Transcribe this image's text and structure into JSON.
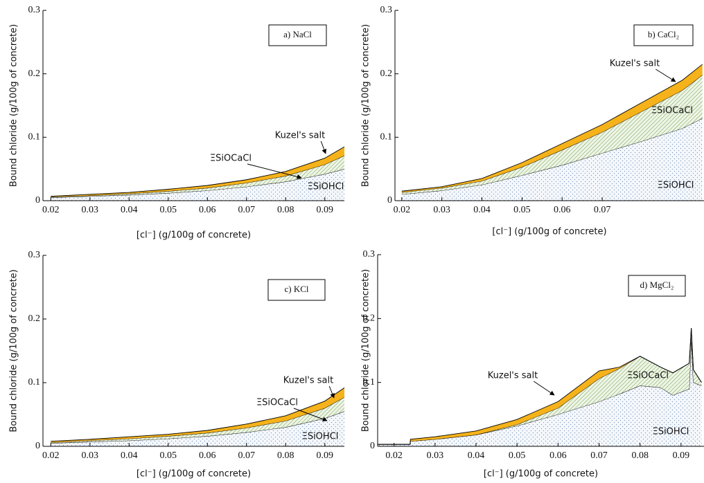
{
  "chart_data": [
    {
      "type": "stacked_area",
      "title": "a) NaCl",
      "xlabel": "[cl⁻] (g/100g of concrete)",
      "ylabel": "Bound chloride (g/100g of concrete)",
      "x": [
        0.02,
        0.03,
        0.04,
        0.05,
        0.06,
        0.07,
        0.08,
        0.09,
        0.095
      ],
      "series": [
        {
          "name": "ΞSiOHCl",
          "color": "#8fa8c8",
          "values": [
            0.005,
            0.007,
            0.009,
            0.012,
            0.016,
            0.022,
            0.03,
            0.042,
            0.05
          ]
        },
        {
          "name": "ΞSiOCaCl",
          "color": "#7aa05a",
          "values": [
            0.001,
            0.001,
            0.002,
            0.003,
            0.004,
            0.006,
            0.009,
            0.015,
            0.021
          ]
        },
        {
          "name": "Kuzel's salt",
          "color": "#f5b21a",
          "values": [
            0.001,
            0.002,
            0.002,
            0.003,
            0.004,
            0.005,
            0.007,
            0.01,
            0.014
          ]
        }
      ],
      "xlim": [
        0.018,
        0.095
      ],
      "ylim": [
        0,
        0.3
      ],
      "xticks": [
        0.02,
        0.03,
        0.04,
        0.05,
        0.06,
        0.07,
        0.08,
        0.09
      ],
      "yticks": [
        0,
        0.1,
        0.2,
        0.3
      ]
    },
    {
      "type": "stacked_area",
      "title": "b) CaCl₂",
      "xlabel": "[cl⁻] (g/100g of concrete)",
      "ylabel": "Bound chloride (g/100g of concrete)",
      "x": [
        0.02,
        0.03,
        0.04,
        0.05,
        0.06,
        0.07,
        0.08,
        0.09,
        0.095
      ],
      "series": [
        {
          "name": "ΞSiOHCl",
          "color": "#8fa8c8",
          "values": [
            0.01,
            0.016,
            0.025,
            0.04,
            0.056,
            0.075,
            0.094,
            0.114,
            0.13
          ]
        },
        {
          "name": "ΞSiOCaCl",
          "color": "#7aa05a",
          "values": [
            0.003,
            0.004,
            0.006,
            0.013,
            0.024,
            0.033,
            0.047,
            0.06,
            0.068
          ]
        },
        {
          "name": "Kuzel's salt",
          "color": "#f5b21a",
          "values": [
            0.002,
            0.002,
            0.004,
            0.007,
            0.01,
            0.012,
            0.014,
            0.016,
            0.017
          ]
        }
      ],
      "xlim": [
        0.0183,
        0.0954
      ],
      "ylim": [
        0,
        0.3
      ],
      "xticks": [
        0.02,
        0.03,
        0.04,
        0.05,
        0.06,
        0.07
      ],
      "yticks": [
        0,
        0.1,
        0.2,
        0.3
      ]
    },
    {
      "type": "stacked_area",
      "title": "c) KCl",
      "xlabel": "[cl⁻] (g/100g of concrete)",
      "ylabel": "Bound chloride (g/100g of concrete)",
      "x": [
        0.02,
        0.03,
        0.04,
        0.05,
        0.06,
        0.07,
        0.08,
        0.09,
        0.095
      ],
      "series": [
        {
          "name": "ΞSiOHCl",
          "color": "#8fa8c8",
          "values": [
            0.005,
            0.007,
            0.009,
            0.012,
            0.016,
            0.022,
            0.03,
            0.044,
            0.055
          ]
        },
        {
          "name": "ΞSiOCaCl",
          "color": "#7aa05a",
          "values": [
            0.001,
            0.002,
            0.003,
            0.004,
            0.005,
            0.007,
            0.01,
            0.016,
            0.022
          ]
        },
        {
          "name": "Kuzel's salt",
          "color": "#f5b21a",
          "values": [
            0.002,
            0.002,
            0.003,
            0.003,
            0.004,
            0.006,
            0.008,
            0.011,
            0.015
          ]
        }
      ],
      "xlim": [
        0.018,
        0.095
      ],
      "ylim": [
        0,
        0.3
      ],
      "xticks": [
        0.02,
        0.03,
        0.04,
        0.05,
        0.06,
        0.07,
        0.08,
        0.09
      ],
      "yticks": [
        0,
        0.1,
        0.2,
        0.3
      ]
    },
    {
      "type": "stacked_area",
      "title": "d) MgCl₂",
      "xlabel": "[cl⁻] (g/100g of concrete)",
      "ylabel": "Bound chloride (g/100g of concrete)",
      "x": [
        0.016,
        0.0239,
        0.024,
        0.03,
        0.04,
        0.05,
        0.06,
        0.07,
        0.075,
        0.08,
        0.085,
        0.088,
        0.092,
        0.0925,
        0.093,
        0.095
      ],
      "series": [
        {
          "name": "ΞSiOHCl",
          "color": "#8fa8c8",
          "values": [
            0.003,
            0.003,
            0.008,
            0.011,
            0.018,
            0.032,
            0.05,
            0.07,
            0.082,
            0.095,
            0.092,
            0.08,
            0.09,
            0.17,
            0.1,
            0.095
          ]
        },
        {
          "name": "ΞSiOCaCl",
          "color": "#7aa05a",
          "values": [
            0,
            0,
            0,
            0,
            0,
            0.002,
            0.01,
            0.036,
            0.04,
            0.046,
            0.032,
            0.035,
            0.04,
            0.015,
            0.02,
            0.005
          ]
        },
        {
          "name": "Kuzel's salt",
          "color": "#f5b21a",
          "values": [
            0,
            0,
            0.003,
            0.004,
            0.006,
            0.008,
            0.01,
            0.012,
            0.002,
            0,
            0,
            0,
            0,
            0,
            0,
            0
          ]
        }
      ],
      "xlim": [
        0.016,
        0.0956
      ],
      "ylim": [
        0,
        0.3
      ],
      "xticks": [
        0.02,
        0.03,
        0.04,
        0.05,
        0.06,
        0.07,
        0.08,
        0.09
      ],
      "yticks": [
        0,
        0.1,
        0.2,
        0.3
      ]
    }
  ]
}
